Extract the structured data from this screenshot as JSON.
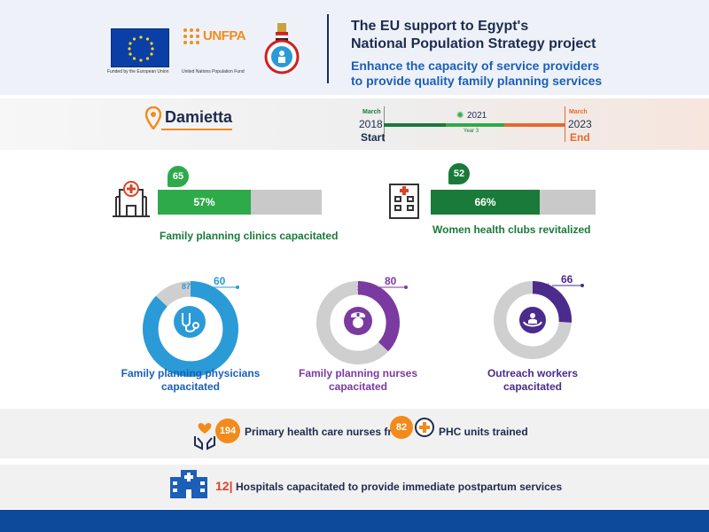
{
  "header": {
    "title_line1": "The EU support to Egypt's",
    "title_line2": "National Population Strategy project",
    "subtitle_line1": "Enhance the capacity of service providers",
    "subtitle_line2": "to provide quality family planning services",
    "eu_caption": "Funded by the European Union",
    "unfpa_text": "UNFPA",
    "unfpa_caption": "United Nations Population Fund"
  },
  "location": {
    "name": "Damietta"
  },
  "timeline": {
    "start_label": "March",
    "start_year": "2018",
    "start_word": "Start",
    "mid_year": "2021",
    "mid_sub": "Year 3",
    "end_label": "March",
    "end_year": "2023",
    "end_word": "End"
  },
  "bars": [
    {
      "count": "65",
      "percent": "57%",
      "fraction": 0.57,
      "label": "Family planning clinics capacitated",
      "color": "#2faa4a",
      "icon": "clinic-icon"
    },
    {
      "count": "52",
      "percent": "66%",
      "fraction": 0.66,
      "label": "Women health clubs revitalized",
      "color": "#1a7a3a",
      "icon": "building-icon"
    }
  ],
  "donuts": [
    {
      "percent": "87%",
      "fraction": 0.87,
      "count": "60",
      "label_line1": "Family planning physicians",
      "label_line2": "capacitated",
      "color": "#2a9bd6",
      "icon": "stethoscope-icon"
    },
    {
      "percent": "37%",
      "fraction": 0.37,
      "count": "80",
      "label_line1": "Family planning nurses",
      "label_line2": "capacitated",
      "color": "#7b3aa0",
      "icon": "nurse-icon"
    },
    {
      "percent": "26%",
      "fraction": 0.26,
      "count": "66",
      "label_line1": "Outreach workers",
      "label_line2": "capacitated",
      "color": "#4b2b8c",
      "icon": "family-care-icon"
    }
  ],
  "band1": {
    "count1": "194",
    "text1": "Primary health care nurses from",
    "count2": "82",
    "text2": "PHC units trained"
  },
  "band2": {
    "count": "12|",
    "text": "Hospitals capacitated to provide immediate postpartum services"
  }
}
